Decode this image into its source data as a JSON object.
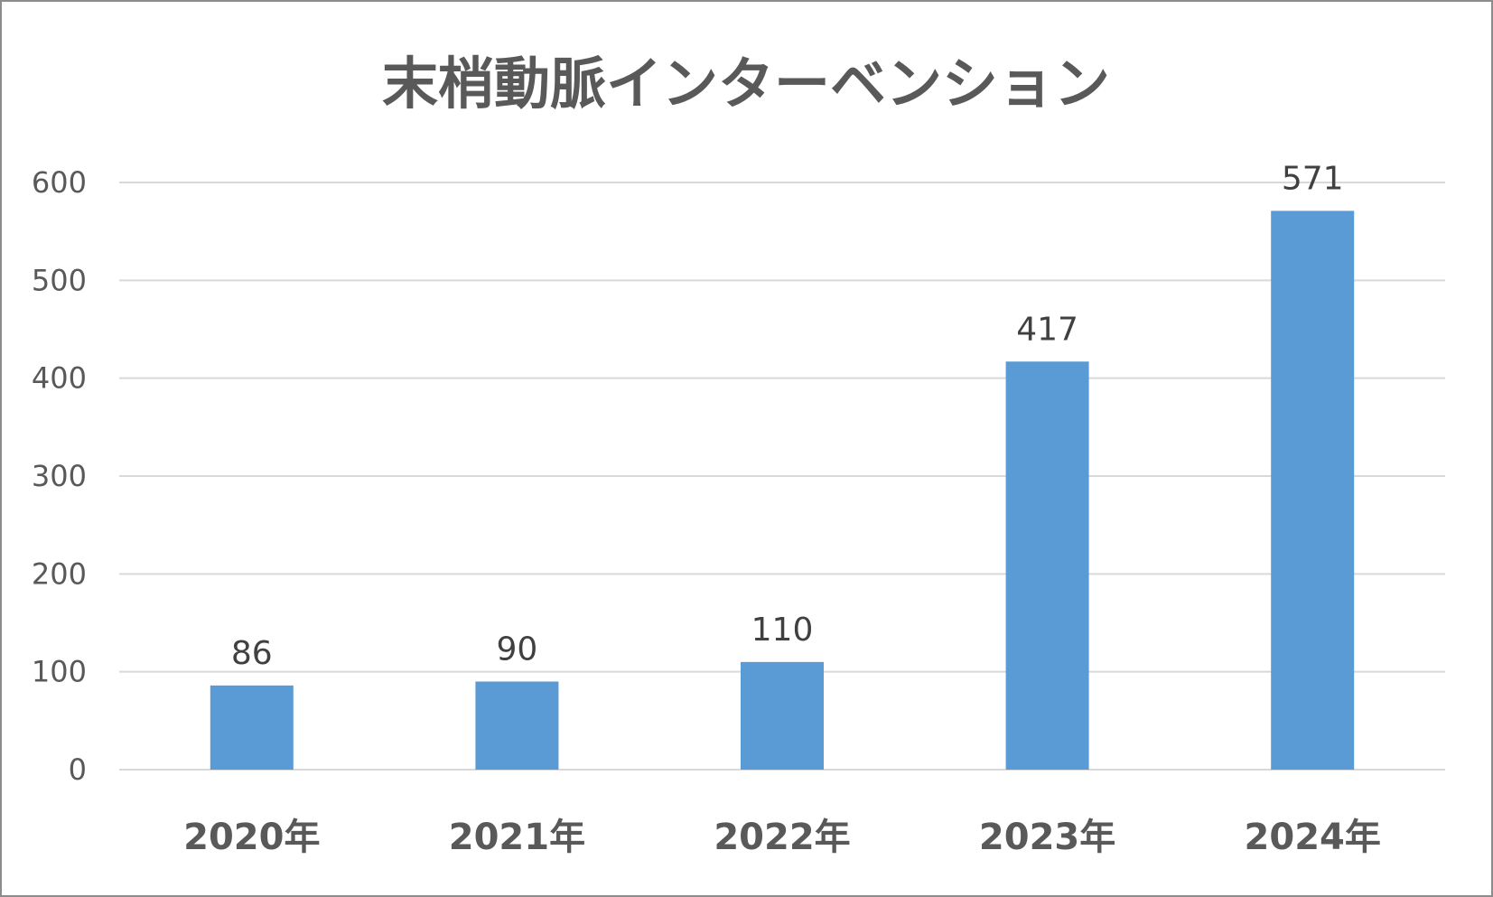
{
  "chart_data": {
    "type": "bar",
    "title": "末梢動脈インターベンション",
    "categories": [
      "2020年",
      "2021年",
      "2022年",
      "2023年",
      "2024年"
    ],
    "values": [
      86,
      90,
      110,
      417,
      571
    ],
    "xlabel": "",
    "ylabel": "",
    "ylim": [
      0,
      600
    ],
    "yticks": [
      0,
      100,
      200,
      300,
      400,
      500,
      600
    ],
    "grid": true,
    "data_labels": true,
    "bar_color": "#5b9bd5",
    "grid_color": "#d9d9d9",
    "text_color": "#595959"
  }
}
